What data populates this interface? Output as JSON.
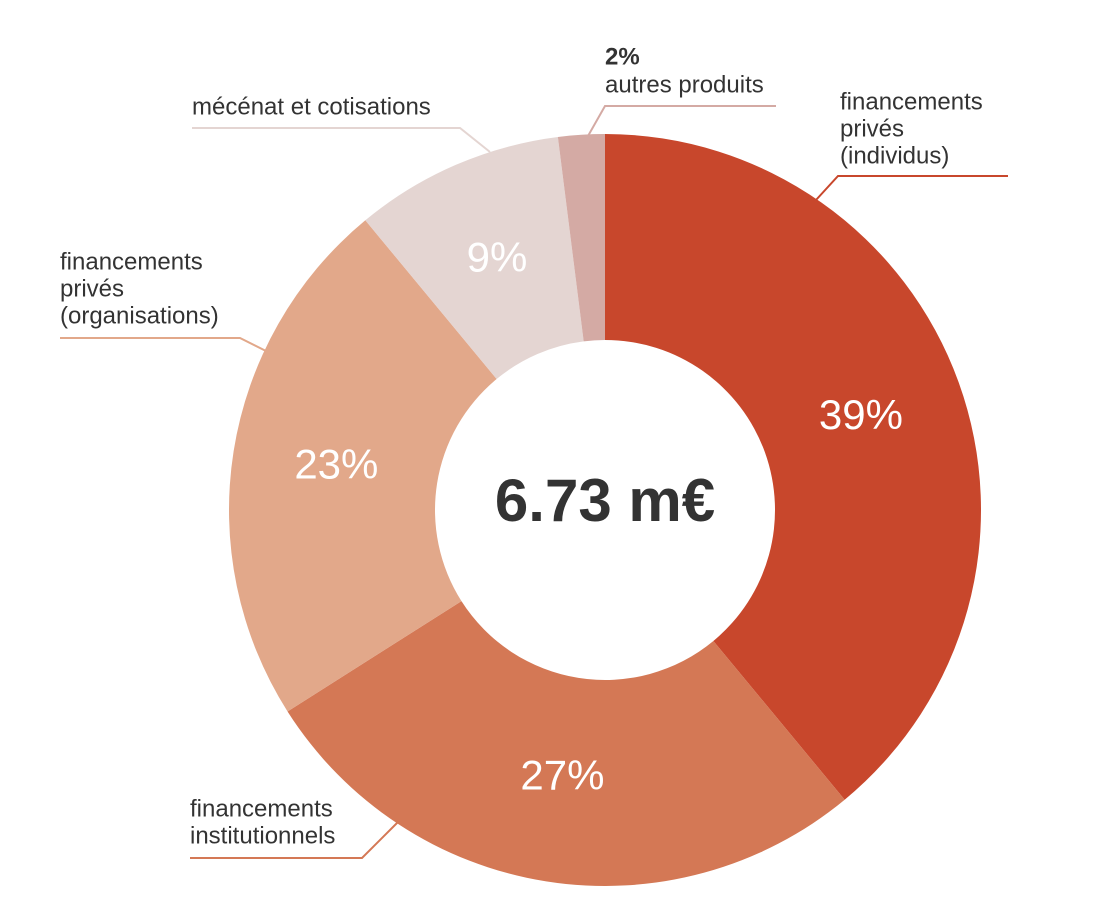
{
  "chart_data": {
    "type": "donut",
    "center_label": "6.73 m€",
    "categories": [
      [
        "financements",
        "privés",
        "(individus)"
      ],
      [
        "financements",
        "institutionnels"
      ],
      [
        "financements",
        "privés",
        "(organisations)"
      ],
      [
        "mécénat et cotisations"
      ],
      [
        "autres produits"
      ]
    ],
    "values": [
      39,
      27,
      23,
      9,
      2
    ],
    "value_labels": [
      "39%",
      "27%",
      "23%",
      "9%",
      "2%"
    ],
    "colors": [
      "#c8472c",
      "#d47855",
      "#e2a88a",
      "#e4d5d2",
      "#d4aaa4"
    ]
  }
}
